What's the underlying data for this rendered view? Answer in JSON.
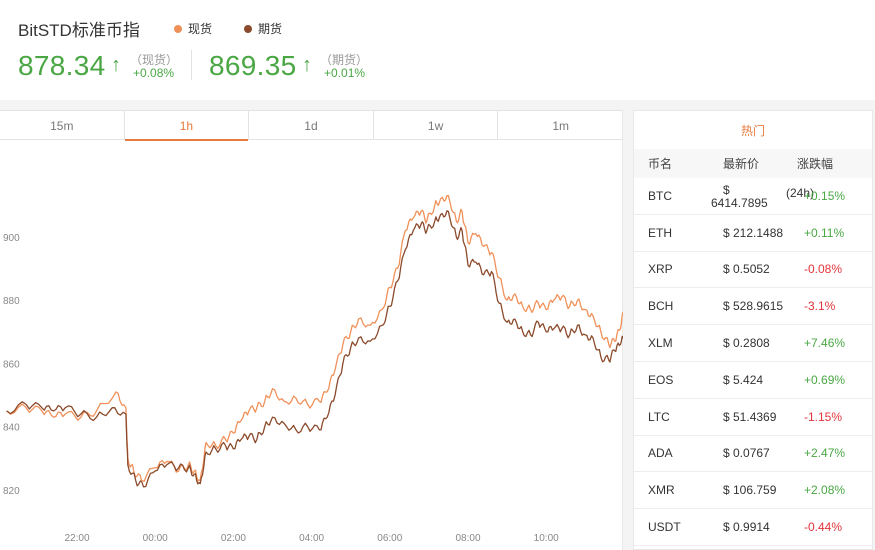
{
  "header": {
    "title": "BitSTD标准币指",
    "legend": [
      {
        "label": "现货",
        "color": "#f0915a"
      },
      {
        "label": "期货",
        "color": "#8b4a2b"
      }
    ],
    "spot": {
      "value": "878.34",
      "label": "（现货）",
      "change": "+0.08%"
    },
    "futures": {
      "value": "869.35",
      "label": "（期货）",
      "change": "+0.01%"
    },
    "arrow": "↑"
  },
  "tabs": [
    "15m",
    "1h",
    "1d",
    "1w",
    "1m"
  ],
  "active_tab": "1h",
  "chart_data": {
    "type": "line",
    "title": "",
    "xlabel": "",
    "ylabel": "",
    "x_ticks": [
      "22:00",
      "00:00",
      "02:00",
      "04:00",
      "06:00",
      "08:00",
      "10:00"
    ],
    "y_ticks": [
      820,
      840,
      860,
      880,
      900
    ],
    "ylim": [
      814,
      925
    ],
    "xlim_hours": [
      -3.8,
      12.0
    ],
    "grid": false,
    "legend_position": "top",
    "series": [
      {
        "name": "现货",
        "color": "#f0915a",
        "points": [
          [
            -3.8,
            845
          ],
          [
            -3.3,
            846
          ],
          [
            -2.9,
            845
          ],
          [
            -2.6,
            843
          ],
          [
            -2.3,
            844
          ],
          [
            -1.9,
            843
          ],
          [
            -1.5,
            845
          ],
          [
            -1.0,
            851
          ],
          [
            -0.75,
            846
          ],
          [
            -0.7,
            830
          ],
          [
            -0.55,
            826
          ],
          [
            -0.35,
            823
          ],
          [
            0.0,
            827
          ],
          [
            0.3,
            829
          ],
          [
            0.6,
            826
          ],
          [
            0.85,
            828
          ],
          [
            1.0,
            826
          ],
          [
            1.15,
            823
          ],
          [
            1.3,
            835
          ],
          [
            1.55,
            834
          ],
          [
            1.8,
            836
          ],
          [
            2.0,
            838
          ],
          [
            2.2,
            842
          ],
          [
            2.4,
            845
          ],
          [
            2.6,
            846
          ],
          [
            2.8,
            848
          ],
          [
            3.0,
            852
          ],
          [
            3.3,
            848
          ],
          [
            3.6,
            849
          ],
          [
            3.9,
            847
          ],
          [
            4.2,
            848
          ],
          [
            4.4,
            851
          ],
          [
            4.6,
            858
          ],
          [
            4.8,
            866
          ],
          [
            5.0,
            870
          ],
          [
            5.2,
            874
          ],
          [
            5.5,
            872
          ],
          [
            5.8,
            877
          ],
          [
            6.0,
            884
          ],
          [
            6.2,
            890
          ],
          [
            6.4,
            902
          ],
          [
            6.6,
            906
          ],
          [
            6.8,
            908
          ],
          [
            6.95,
            905
          ],
          [
            7.15,
            910
          ],
          [
            7.3,
            912
          ],
          [
            7.5,
            913
          ],
          [
            7.7,
            905
          ],
          [
            7.85,
            908
          ],
          [
            8.0,
            898
          ],
          [
            8.2,
            901
          ],
          [
            8.4,
            897
          ],
          [
            8.6,
            895
          ],
          [
            8.8,
            887
          ],
          [
            9.0,
            880
          ],
          [
            9.2,
            882
          ],
          [
            9.4,
            878
          ],
          [
            9.6,
            877
          ],
          [
            9.8,
            879
          ],
          [
            10.0,
            877
          ],
          [
            10.2,
            880
          ],
          [
            10.4,
            881
          ],
          [
            10.6,
            878
          ],
          [
            10.8,
            880
          ],
          [
            11.0,
            877
          ],
          [
            11.2,
            875
          ],
          [
            11.4,
            870
          ],
          [
            11.6,
            866
          ],
          [
            11.75,
            867
          ],
          [
            11.9,
            871
          ],
          [
            12.0,
            878
          ]
        ]
      },
      {
        "name": "期货",
        "color": "#8b4a2b",
        "points": [
          [
            -3.8,
            845
          ],
          [
            -3.3,
            847
          ],
          [
            -2.9,
            846
          ],
          [
            -2.6,
            845
          ],
          [
            -2.3,
            846
          ],
          [
            -1.9,
            844
          ],
          [
            -1.5,
            843
          ],
          [
            -1.1,
            846
          ],
          [
            -0.75,
            844
          ],
          [
            -0.7,
            828
          ],
          [
            -0.5,
            823
          ],
          [
            -0.3,
            821
          ],
          [
            0.0,
            826
          ],
          [
            0.3,
            828
          ],
          [
            0.6,
            827
          ],
          [
            0.85,
            827
          ],
          [
            1.0,
            825
          ],
          [
            1.15,
            822
          ],
          [
            1.3,
            832
          ],
          [
            1.55,
            833
          ],
          [
            1.8,
            834
          ],
          [
            2.0,
            833
          ],
          [
            2.2,
            836
          ],
          [
            2.4,
            837
          ],
          [
            2.6,
            836
          ],
          [
            2.8,
            840
          ],
          [
            3.0,
            843
          ],
          [
            3.3,
            841
          ],
          [
            3.6,
            839
          ],
          [
            3.9,
            840
          ],
          [
            4.2,
            839
          ],
          [
            4.4,
            843
          ],
          [
            4.6,
            850
          ],
          [
            4.8,
            860
          ],
          [
            5.0,
            865
          ],
          [
            5.2,
            868
          ],
          [
            5.5,
            867
          ],
          [
            5.8,
            872
          ],
          [
            6.0,
            878
          ],
          [
            6.2,
            886
          ],
          [
            6.4,
            896
          ],
          [
            6.6,
            902
          ],
          [
            6.8,
            904
          ],
          [
            6.95,
            902
          ],
          [
            7.15,
            905
          ],
          [
            7.3,
            907
          ],
          [
            7.5,
            908
          ],
          [
            7.7,
            900
          ],
          [
            7.85,
            902
          ],
          [
            8.0,
            891
          ],
          [
            8.2,
            892
          ],
          [
            8.4,
            888
          ],
          [
            8.6,
            889
          ],
          [
            8.8,
            879
          ],
          [
            9.0,
            873
          ],
          [
            9.2,
            874
          ],
          [
            9.4,
            870
          ],
          [
            9.6,
            869
          ],
          [
            9.8,
            873
          ],
          [
            10.0,
            870
          ],
          [
            10.2,
            871
          ],
          [
            10.4,
            871
          ],
          [
            10.6,
            869
          ],
          [
            10.8,
            872
          ],
          [
            11.0,
            869
          ],
          [
            11.2,
            868
          ],
          [
            11.4,
            862
          ],
          [
            11.6,
            861
          ],
          [
            11.75,
            864
          ],
          [
            11.9,
            866
          ],
          [
            12.0,
            869
          ]
        ]
      }
    ]
  },
  "table": {
    "title": "热门",
    "headers": [
      "币名",
      "最新价",
      "涨跌幅"
    ],
    "btc": {
      "name": "BTC",
      "price_line1": "$",
      "price_line2": "6414.7895",
      "tag": "(24h)",
      "change": "+0.15%",
      "dir": "up"
    },
    "rows": [
      {
        "name": "ETH",
        "price": "$ 212.1488",
        "change": "+0.11%",
        "dir": "up"
      },
      {
        "name": "XRP",
        "price": "$ 0.5052",
        "change": "-0.08%",
        "dir": "down"
      },
      {
        "name": "BCH",
        "price": "$ 528.9615",
        "change": "-3.1%",
        "dir": "down"
      },
      {
        "name": "XLM",
        "price": "$ 0.2808",
        "change": "+7.46%",
        "dir": "up"
      },
      {
        "name": "EOS",
        "price": "$ 5.424",
        "change": "+0.69%",
        "dir": "up"
      },
      {
        "name": "LTC",
        "price": "$ 51.4369",
        "change": "-1.15%",
        "dir": "down"
      },
      {
        "name": "ADA",
        "price": "$ 0.0767",
        "change": "+2.47%",
        "dir": "up"
      },
      {
        "name": "XMR",
        "price": "$ 106.759",
        "change": "+2.08%",
        "dir": "up"
      },
      {
        "name": "USDT",
        "price": "$ 0.9914",
        "change": "-0.44%",
        "dir": "down"
      }
    ]
  }
}
